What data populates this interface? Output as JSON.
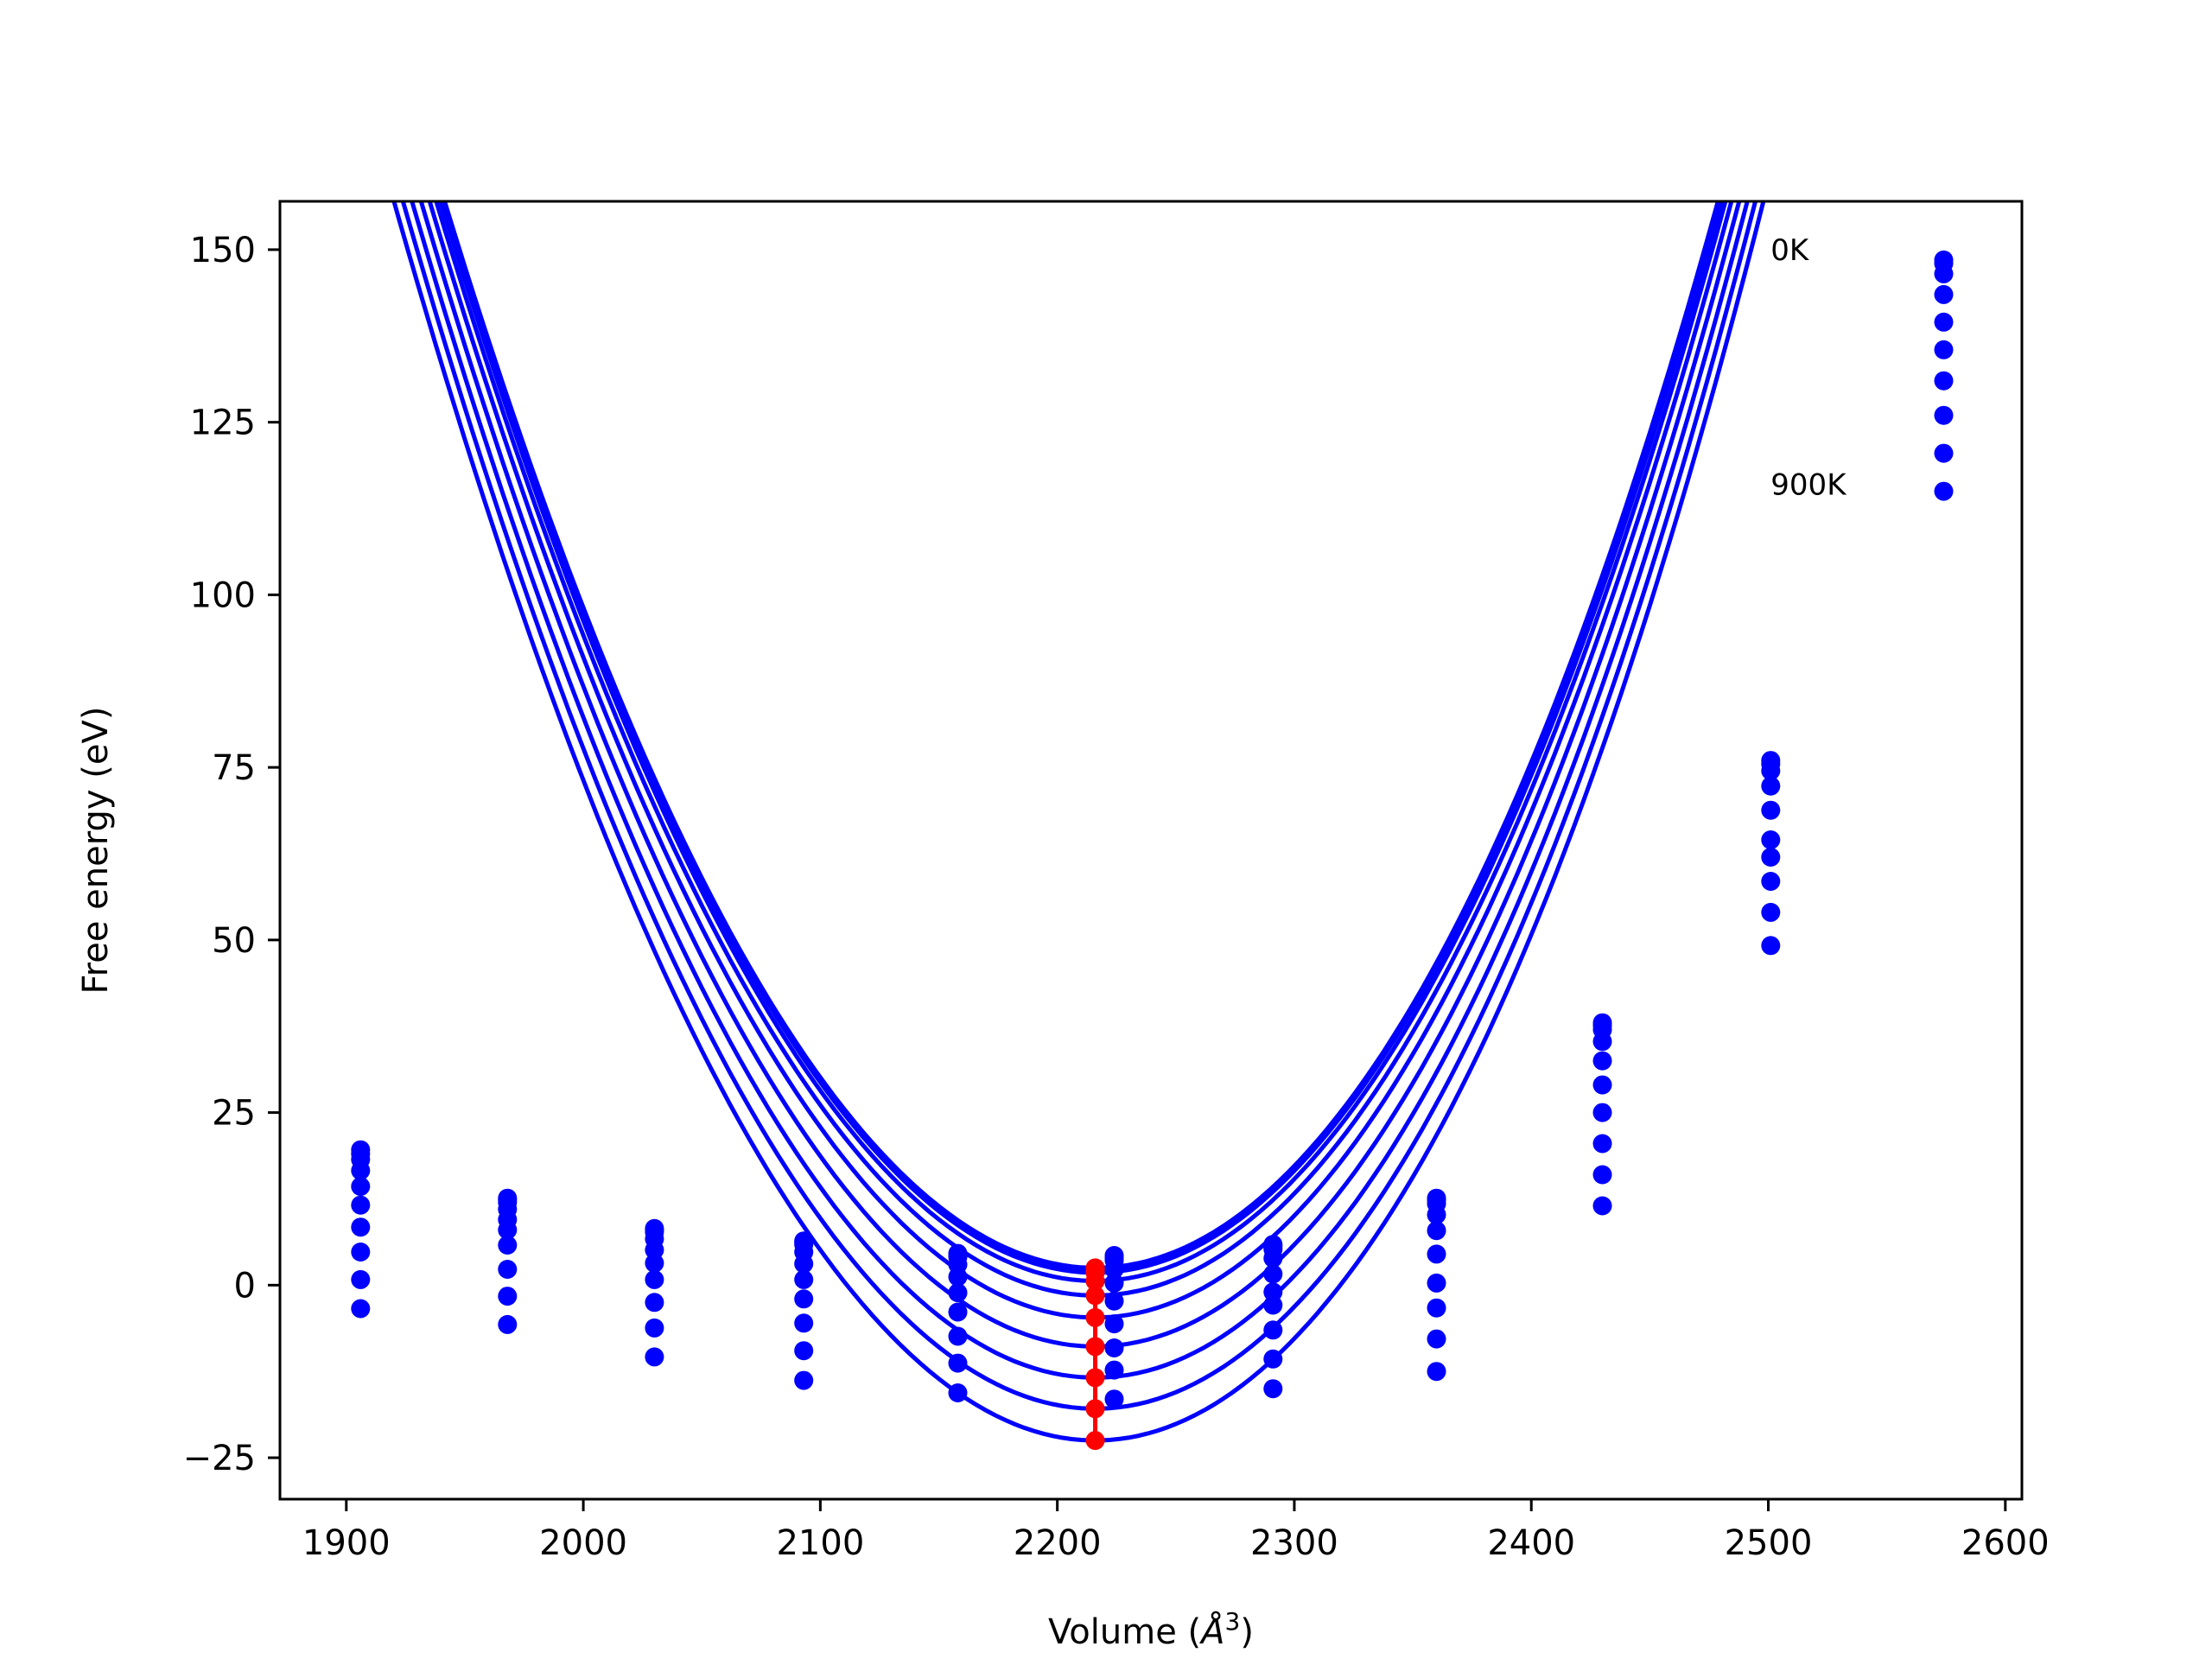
{
  "chart_data": {
    "type": "line",
    "title": "",
    "xlabel": "Volume (",
    "xlabel_symbol": "Å",
    "xlabel_exponent": "3",
    "xlabel_close": ")",
    "ylabel": "Free energy (eV)",
    "xlim": [
      1872,
      2607
    ],
    "ylim": [
      -31,
      157
    ],
    "xticks": [
      1900,
      2000,
      2100,
      2200,
      2300,
      2400,
      2500,
      2600
    ],
    "yticks": [
      -25,
      0,
      25,
      50,
      75,
      100,
      125,
      150
    ],
    "ytick_labels": [
      "−25",
      "0",
      "25",
      "50",
      "75",
      "100",
      "125",
      "150"
    ],
    "grid": false,
    "legend": null,
    "annotations": [
      {
        "text": "0K",
        "x": 2501,
        "y": 150
      },
      {
        "text": "900K",
        "x": 2501,
        "y": 116
      }
    ],
    "series_color": "#0000ff",
    "minimum_color": "#ff0000",
    "volumes": [
      1906,
      1968,
      2030,
      2093,
      2158,
      2224,
      2291,
      2360,
      2430,
      2501,
      2574
    ],
    "series": [
      {
        "values": [
          19.6,
          12.6,
          8.2,
          6.4,
          4.6,
          4.3,
          5.9,
          12.6,
          38.0,
          76.0,
          148.5
        ]
      },
      {
        "values": [
          19.0,
          12.4,
          8.0,
          6.2,
          4.4,
          4.0,
          5.6,
          12.3,
          37.6,
          75.5,
          148.0
        ]
      },
      {
        "values": [
          18.2,
          12.0,
          7.7,
          5.9,
          4.1,
          3.6,
          5.2,
          11.8,
          37.0,
          74.5,
          146.5
        ]
      },
      {
        "values": [
          16.6,
          11.0,
          6.7,
          4.8,
          3.0,
          2.3,
          3.9,
          10.2,
          35.3,
          72.3,
          143.5
        ]
      },
      {
        "values": [
          14.3,
          9.5,
          5.1,
          3.1,
          1.2,
          0.3,
          1.6,
          7.9,
          32.5,
          68.8,
          139.5
        ]
      },
      {
        "values": [
          11.6,
          8.0,
          3.2,
          0.8,
          -1.1,
          -2.3,
          -1.0,
          4.5,
          29.0,
          64.5,
          135.5
        ]
      },
      {
        "values": [
          8.4,
          5.8,
          0.8,
          -2.0,
          -3.9,
          -5.6,
          -2.9,
          0.3,
          25.0,
          62.0,
          131.0
        ]
      },
      {
        "values": [
          4.8,
          2.3,
          -2.5,
          -5.5,
          -7.4,
          -9.1,
          -6.5,
          -3.3,
          20.5,
          58.5,
          126.0
        ]
      },
      {
        "values": [
          0.8,
          -1.6,
          -6.2,
          -9.5,
          -11.3,
          -12.3,
          -10.7,
          -7.8,
          16.0,
          54.0,
          120.5
        ]
      },
      {
        "values": [
          -3.4,
          -5.7,
          -10.4,
          -13.8,
          -15.6,
          -16.5,
          -15.0,
          -12.5,
          11.5,
          49.2,
          115.0
        ]
      }
    ],
    "fits": [
      {
        "vmin": 2216,
        "emin": 2.5,
        "b": 0.0205,
        "k1": 4e-07,
        "k2": 1.2e-09
      },
      {
        "vmin": 2216,
        "emin": 2.2,
        "b": 0.0205,
        "k1": 4e-07,
        "k2": 1.2e-09
      },
      {
        "vmin": 2216,
        "emin": 1.8,
        "b": 0.0205,
        "k1": 4e-07,
        "k2": 1.2e-09
      },
      {
        "vmin": 2216,
        "emin": 0.6,
        "b": 0.0205,
        "k1": 4e-07,
        "k2": 1.2e-09
      },
      {
        "vmin": 2216,
        "emin": -1.5,
        "b": 0.0205,
        "k1": 4e-07,
        "k2": 1.2e-09
      },
      {
        "vmin": 2216,
        "emin": -4.7,
        "b": 0.0205,
        "k1": 4e-07,
        "k2": 1.2e-09
      },
      {
        "vmin": 2216,
        "emin": -8.9,
        "b": 0.0205,
        "k1": 4e-07,
        "k2": 1.2e-09
      },
      {
        "vmin": 2216,
        "emin": -13.4,
        "b": 0.0205,
        "k1": 4e-07,
        "k2": 1.2e-09
      },
      {
        "vmin": 2216,
        "emin": -17.9,
        "b": 0.0205,
        "k1": 4e-07,
        "k2": 1.2e-09
      },
      {
        "vmin": 2216,
        "emin": -22.5,
        "b": 0.0205,
        "k1": 4e-07,
        "k2": 1.2e-09
      }
    ],
    "minima": [
      {
        "x": 2216,
        "y": 2.5
      },
      {
        "x": 2216,
        "y": 2.2
      },
      {
        "x": 2216,
        "y": 1.8
      },
      {
        "x": 2216,
        "y": 0.6
      },
      {
        "x": 2216,
        "y": -1.5
      },
      {
        "x": 2216,
        "y": -4.7
      },
      {
        "x": 2216,
        "y": -8.9
      },
      {
        "x": 2216,
        "y": -13.4
      },
      {
        "x": 2216,
        "y": -17.9
      },
      {
        "x": 2216,
        "y": -22.5
      }
    ]
  }
}
